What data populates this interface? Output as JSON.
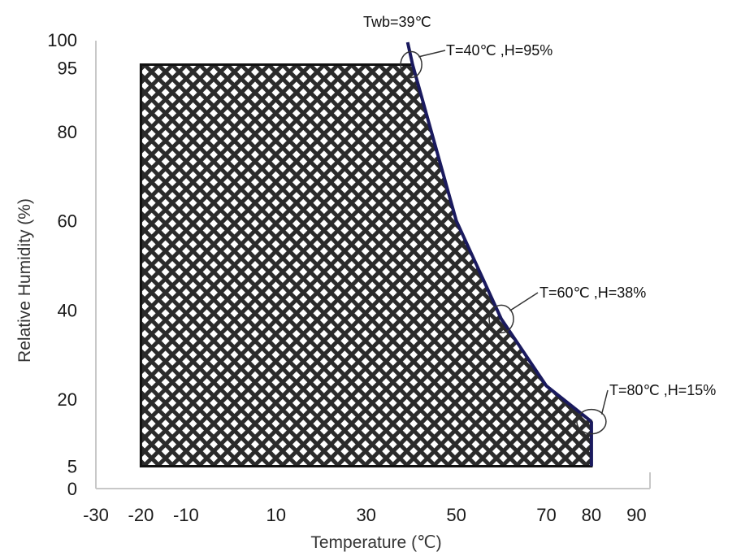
{
  "chart_data": {
    "type": "area",
    "xlabel": "Temperature (℃)",
    "ylabel": "Relative Humidity (%)",
    "xlim": [
      -30,
      93
    ],
    "ylim": [
      0,
      100
    ],
    "x_ticks": [
      -30,
      -20,
      -10,
      10,
      30,
      50,
      70,
      80,
      90
    ],
    "y_ticks": [
      0,
      5,
      20,
      40,
      60,
      80,
      95,
      100
    ],
    "grid": false,
    "legend": "none",
    "region": {
      "fill": "crosshatch",
      "x": [
        -20,
        40,
        40.3,
        50,
        60,
        70,
        80,
        80,
        -20
      ],
      "y": [
        95,
        95,
        95,
        60,
        38,
        23,
        15,
        5,
        5
      ]
    },
    "wet_bulb_curve": {
      "name": "Twb=39℃",
      "x": [
        39.2,
        40.3,
        50,
        60,
        70,
        80
      ],
      "y": [
        100,
        95,
        60,
        38,
        23,
        15
      ]
    },
    "annotations": [
      {
        "text": "Twb=39℃",
        "x": 39,
        "y": 100
      },
      {
        "text": "T=40℃ ,H=95%",
        "x": 40,
        "y": 95
      },
      {
        "text": "T=60℃ ,H=38%",
        "x": 60,
        "y": 38
      },
      {
        "text": "T=80℃ ,H=15%",
        "x": 80,
        "y": 15
      }
    ],
    "colors": {
      "axis": "#c8c8c8",
      "region_border": "#111111",
      "curve": "#1a1a5e",
      "hatch": "#2b2b2b",
      "marker": "#333333"
    }
  }
}
